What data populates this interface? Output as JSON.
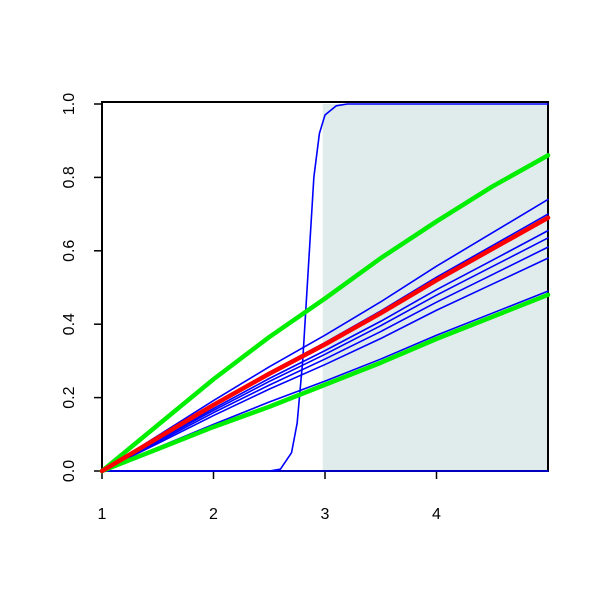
{
  "chart_data": {
    "type": "line",
    "x": [
      1,
      1.5,
      2,
      2.5,
      3,
      3.5,
      4,
      4.5,
      5
    ],
    "xlim": [
      1,
      5
    ],
    "ylim": [
      0,
      1
    ],
    "xticks": [
      1,
      2,
      3,
      4
    ],
    "yticks": [
      {
        "value": 0,
        "label": "0.0"
      },
      {
        "value": 0.2,
        "label": "0.2"
      },
      {
        "value": 0.4,
        "label": "0.4"
      },
      {
        "value": 0.6,
        "label": "0.6"
      },
      {
        "value": 0.8,
        "label": "0.8"
      },
      {
        "value": 1,
        "label": "1.0"
      }
    ],
    "shade": {
      "xlim": [
        2.98,
        5
      ],
      "color": "#e0ecec"
    },
    "series": [
      {
        "color": "#0000ff",
        "x": [
          1,
          5
        ],
        "values": [
          0,
          0
        ]
      },
      {
        "color": "#0000ff",
        "x": [
          1,
          2.5,
          2.6,
          2.7,
          2.75,
          2.8,
          2.85,
          2.9,
          2.95,
          3.0,
          3.1,
          3.2,
          5
        ],
        "values": [
          0,
          0,
          0.005,
          0.05,
          0.13,
          0.3,
          0.55,
          0.8,
          0.92,
          0.97,
          0.995,
          1,
          1
        ]
      },
      {
        "color": "#0000ff",
        "values": [
          0,
          0.096,
          0.192,
          0.284,
          0.37,
          0.461,
          0.558,
          0.649,
          0.74
        ]
      },
      {
        "color": "#0000ff",
        "values": [
          0,
          0.091,
          0.182,
          0.269,
          0.35,
          0.436,
          0.528,
          0.614,
          0.7
        ]
      },
      {
        "color": "#0000ff",
        "values": [
          0,
          0.085,
          0.17,
          0.252,
          0.328,
          0.408,
          0.494,
          0.574,
          0.655
        ]
      },
      {
        "color": "#0000ff",
        "values": [
          0,
          0.083,
          0.165,
          0.244,
          0.318,
          0.396,
          0.479,
          0.557,
          0.635
        ]
      },
      {
        "color": "#0000ff",
        "values": [
          0,
          0.079,
          0.159,
          0.234,
          0.305,
          0.38,
          0.46,
          0.535,
          0.61
        ]
      },
      {
        "color": "#0000ff",
        "values": [
          0,
          0.075,
          0.151,
          0.223,
          0.29,
          0.361,
          0.438,
          0.509,
          0.58
        ]
      },
      {
        "color": "#0000ff",
        "values": [
          0,
          0.064,
          0.127,
          0.188,
          0.245,
          0.305,
          0.37,
          0.43,
          0.49
        ]
      },
      {
        "color": "#00ee00",
        "values": [
          0,
          0.125,
          0.25,
          0.365,
          0.47,
          0.58,
          0.68,
          0.775,
          0.86
        ]
      },
      {
        "color": "#00ee00",
        "values": [
          0,
          0.06,
          0.12,
          0.175,
          0.235,
          0.295,
          0.36,
          0.42,
          0.48
        ]
      },
      {
        "color": "#ff0000",
        "values": [
          0,
          0.09,
          0.18,
          0.265,
          0.345,
          0.43,
          0.52,
          0.605,
          0.69
        ]
      }
    ]
  }
}
